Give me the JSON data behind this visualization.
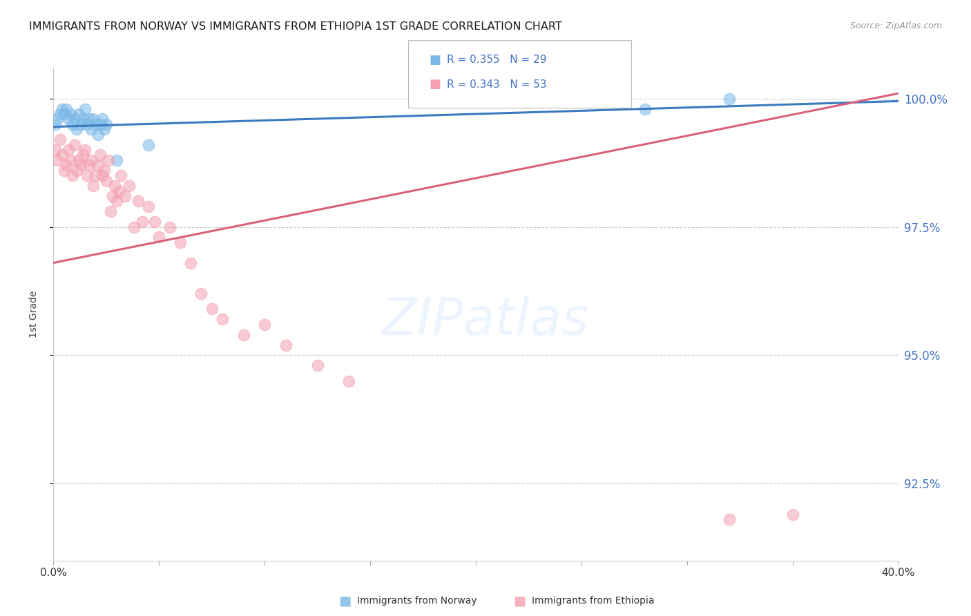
{
  "title": "IMMIGRANTS FROM NORWAY VS IMMIGRANTS FROM ETHIOPIA 1ST GRADE CORRELATION CHART",
  "source": "Source: ZipAtlas.com",
  "ylabel": "1st Grade",
  "norway_R": 0.355,
  "norway_N": 29,
  "ethiopia_R": 0.343,
  "ethiopia_N": 53,
  "norway_color": "#7ab8e8",
  "ethiopia_color": "#f4a0b0",
  "norway_line_color": "#3a7abf",
  "ethiopia_line_color": "#d9607a",
  "right_axis_color": "#4472c4",
  "legend_text_color": "#4472c4",
  "title_color": "#1a1a1a",
  "background_color": "#ffffff",
  "norway_x": [
    0.1,
    0.2,
    0.3,
    0.4,
    0.5,
    0.6,
    0.7,
    0.8,
    0.9,
    1.0,
    1.1,
    1.2,
    1.3,
    1.4,
    1.5,
    1.6,
    1.7,
    1.8,
    1.9,
    2.0,
    2.1,
    2.2,
    2.3,
    2.4,
    2.5,
    3.0,
    4.5,
    28.0,
    32.0
  ],
  "norway_y": [
    99.5,
    99.6,
    99.7,
    99.8,
    99.7,
    99.8,
    99.6,
    99.7,
    99.5,
    99.6,
    99.4,
    99.7,
    99.5,
    99.6,
    99.8,
    99.5,
    99.6,
    99.4,
    99.6,
    99.5,
    99.3,
    99.5,
    99.6,
    99.4,
    99.5,
    98.8,
    99.1,
    99.8,
    100.0
  ],
  "ethiopia_x": [
    0.1,
    0.2,
    0.3,
    0.4,
    0.5,
    0.6,
    0.7,
    0.8,
    0.9,
    1.0,
    1.1,
    1.2,
    1.3,
    1.4,
    1.5,
    1.6,
    1.7,
    1.8,
    1.9,
    2.0,
    2.1,
    2.2,
    2.3,
    2.4,
    2.5,
    2.6,
    2.7,
    2.8,
    2.9,
    3.0,
    3.1,
    3.2,
    3.4,
    3.6,
    3.8,
    4.0,
    4.2,
    4.5,
    4.8,
    5.0,
    5.5,
    6.0,
    6.5,
    7.0,
    7.5,
    8.0,
    9.0,
    10.0,
    11.0,
    12.5,
    14.0,
    32.0,
    35.0
  ],
  "ethiopia_y": [
    99.0,
    98.8,
    99.2,
    98.9,
    98.6,
    98.7,
    99.0,
    98.8,
    98.5,
    99.1,
    98.6,
    98.8,
    98.7,
    98.9,
    99.0,
    98.5,
    98.7,
    98.8,
    98.3,
    98.5,
    98.7,
    98.9,
    98.5,
    98.6,
    98.4,
    98.8,
    97.8,
    98.1,
    98.3,
    98.0,
    98.2,
    98.5,
    98.1,
    98.3,
    97.5,
    98.0,
    97.6,
    97.9,
    97.6,
    97.3,
    97.5,
    97.2,
    96.8,
    96.2,
    95.9,
    95.7,
    95.4,
    95.6,
    95.2,
    94.8,
    94.5,
    91.8,
    91.9
  ],
  "xmin": 0.0,
  "xmax": 40.0,
  "ymin": 91.0,
  "ymax": 100.6,
  "yticks": [
    92.5,
    95.0,
    97.5,
    100.0
  ],
  "xticks_vals": [
    0.0,
    5.0,
    10.0,
    15.0,
    20.0,
    25.0,
    30.0,
    35.0,
    40.0
  ],
  "xticks_labels": [
    "0.0%",
    "",
    "",
    "",
    "",
    "",
    "",
    "",
    "40.0%"
  ],
  "norway_line_x0": 0.0,
  "norway_line_x1": 40.0,
  "norway_line_y0": 99.45,
  "norway_line_y1": 99.95,
  "ethiopia_line_x0": 0.0,
  "ethiopia_line_x1": 40.0,
  "ethiopia_line_y0": 96.8,
  "ethiopia_line_y1": 100.1
}
